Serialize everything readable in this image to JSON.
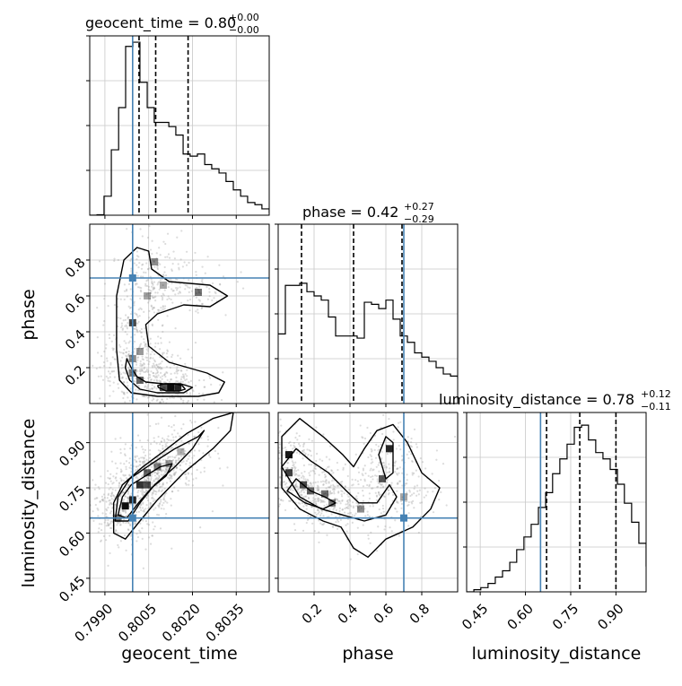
{
  "chart_data": {
    "type": "corner",
    "parameters": [
      "geocent_time",
      "phase",
      "luminosity_distance"
    ],
    "axis_labels": {
      "geocent_time": "geocent_time",
      "phase": "phase",
      "luminosity_distance": "luminosity_distance"
    },
    "ranges": {
      "geocent_time": [
        0.79848,
        0.80463
      ],
      "phase": [
        0.0,
        1.0
      ],
      "luminosity_distance": [
        0.405,
        1.0
      ]
    },
    "ticks": {
      "geocent_time": [
        {
          "value": 0.799,
          "label": "0.7990"
        },
        {
          "value": 0.8005,
          "label": "0.8005"
        },
        {
          "value": 0.802,
          "label": "0.8020"
        },
        {
          "value": 0.8035,
          "label": "0.8035"
        }
      ],
      "phase": [
        {
          "value": 0.2,
          "label": "0.2"
        },
        {
          "value": 0.4,
          "label": "0.4"
        },
        {
          "value": 0.6,
          "label": "0.6"
        },
        {
          "value": 0.8,
          "label": "0.8"
        }
      ],
      "luminosity_distance": [
        {
          "value": 0.45,
          "label": "0.45"
        },
        {
          "value": 0.6,
          "label": "0.60"
        },
        {
          "value": 0.75,
          "label": "0.75"
        },
        {
          "value": 0.9,
          "label": "0.90"
        }
      ]
    },
    "truths": {
      "geocent_time": 0.79995,
      "phase": 0.7,
      "luminosity_distance": 0.65
    },
    "titles": [
      {
        "param": "geocent_time",
        "text": "geocent_time = 0.80",
        "sup": "+0.00",
        "sub": "−0.00"
      },
      {
        "param": "phase",
        "text": "phase = 0.42",
        "sup": "+0.27",
        "sub": "−0.29"
      },
      {
        "param": "luminosity_distance",
        "text": "luminosity_distance = 0.78",
        "sup": "+0.12",
        "sub": "−0.11"
      }
    ],
    "quantiles": {
      "geocent_time": [
        0.80017,
        0.80074,
        0.80185
      ],
      "phase": [
        0.13,
        0.42,
        0.69
      ],
      "luminosity_distance": [
        0.67,
        0.78,
        0.9
      ]
    },
    "histograms": {
      "geocent_time": {
        "edges": [
          0.79848,
          0.79873,
          0.79897,
          0.79922,
          0.79947,
          0.79971,
          0.79996,
          0.8002,
          0.80045,
          0.80069,
          0.80094,
          0.80119,
          0.80143,
          0.80168,
          0.80192,
          0.80217,
          0.80242,
          0.80266,
          0.80291,
          0.80315,
          0.8034,
          0.80365,
          0.80389,
          0.80414,
          0.80438,
          0.80463
        ],
        "counts": [
          0.0,
          0.002,
          0.09,
          0.31,
          0.51,
          0.8,
          0.82,
          0.63,
          0.51,
          0.44,
          0.44,
          0.42,
          0.38,
          0.29,
          0.28,
          0.29,
          0.24,
          0.22,
          0.2,
          0.16,
          0.12,
          0.09,
          0.06,
          0.05,
          0.03,
          0.01
        ]
      },
      "phase": {
        "edges": [
          0.0,
          0.04,
          0.08,
          0.12,
          0.16,
          0.2,
          0.24,
          0.28,
          0.32,
          0.36,
          0.4,
          0.44,
          0.48,
          0.52,
          0.56,
          0.6,
          0.64,
          0.68,
          0.72,
          0.76,
          0.8,
          0.84,
          0.88,
          0.92,
          0.96,
          1.0
        ],
        "counts": [
          0.33,
          0.56,
          0.56,
          0.57,
          0.53,
          0.51,
          0.49,
          0.41,
          0.32,
          0.32,
          0.32,
          0.31,
          0.48,
          0.47,
          0.45,
          0.49,
          0.4,
          0.32,
          0.29,
          0.24,
          0.22,
          0.2,
          0.17,
          0.14,
          0.13,
          0.12
        ]
      },
      "luminosity_distance": {
        "edges": [
          0.405,
          0.429,
          0.452,
          0.476,
          0.5,
          0.524,
          0.548,
          0.571,
          0.595,
          0.619,
          0.643,
          0.667,
          0.69,
          0.714,
          0.738,
          0.762,
          0.786,
          0.809,
          0.833,
          0.857,
          0.881,
          0.905,
          0.928,
          0.952,
          0.976,
          1.0
        ],
        "counts": [
          0.0,
          0.01,
          0.02,
          0.04,
          0.07,
          0.1,
          0.14,
          0.2,
          0.26,
          0.32,
          0.4,
          0.47,
          0.56,
          0.63,
          0.7,
          0.78,
          0.79,
          0.72,
          0.66,
          0.63,
          0.58,
          0.51,
          0.42,
          0.33,
          0.23,
          0.12
        ]
      }
    },
    "contours_2d": {
      "phase_vs_geocent_time": [
        [
          [
            0.80083,
            0.09
          ],
          [
            0.80081,
            0.1
          ],
          [
            0.80105,
            0.11
          ],
          [
            0.8014,
            0.11
          ],
          [
            0.80165,
            0.1
          ],
          [
            0.80175,
            0.08
          ],
          [
            0.80155,
            0.07
          ],
          [
            0.8011,
            0.07
          ],
          [
            0.80083,
            0.09
          ]
        ],
        [
          [
            0.79975,
            0.25
          ],
          [
            0.7999,
            0.2
          ],
          [
            0.8001,
            0.15
          ],
          [
            0.8004,
            0.12
          ],
          [
            0.801,
            0.11
          ],
          [
            0.8016,
            0.11
          ],
          [
            0.802,
            0.09
          ],
          [
            0.8017,
            0.06
          ],
          [
            0.8008,
            0.06
          ],
          [
            0.8002,
            0.08
          ],
          [
            0.79985,
            0.13
          ],
          [
            0.7997,
            0.2
          ],
          [
            0.79975,
            0.25
          ]
        ],
        [
          [
            0.7994,
            0.6
          ],
          [
            0.79965,
            0.8
          ],
          [
            0.8001,
            0.87
          ],
          [
            0.8005,
            0.85
          ],
          [
            0.8006,
            0.75
          ],
          [
            0.8012,
            0.68
          ],
          [
            0.8026,
            0.66
          ],
          [
            0.8032,
            0.6
          ],
          [
            0.8026,
            0.54
          ],
          [
            0.8017,
            0.55
          ],
          [
            0.8008,
            0.5
          ],
          [
            0.8004,
            0.44
          ],
          [
            0.8005,
            0.32
          ],
          [
            0.8012,
            0.23
          ],
          [
            0.8025,
            0.17
          ],
          [
            0.8031,
            0.12
          ],
          [
            0.8029,
            0.06
          ],
          [
            0.8022,
            0.04
          ],
          [
            0.8008,
            0.04
          ],
          [
            0.7999,
            0.06
          ],
          [
            0.7995,
            0.13
          ],
          [
            0.7994,
            0.3
          ],
          [
            0.7994,
            0.6
          ]
        ]
      ],
      "luminosity_distance_vs_geocent_time": [
        [
          [
            0.79945,
            0.66
          ],
          [
            0.7996,
            0.72
          ],
          [
            0.7999,
            0.76
          ],
          [
            0.8004,
            0.79
          ],
          [
            0.8009,
            0.82
          ],
          [
            0.8013,
            0.83
          ],
          [
            0.8011,
            0.79
          ],
          [
            0.8006,
            0.75
          ],
          [
            0.80015,
            0.7
          ],
          [
            0.79975,
            0.65
          ],
          [
            0.79945,
            0.66
          ]
        ],
        [
          [
            0.79935,
            0.64
          ],
          [
            0.79945,
            0.72
          ],
          [
            0.79985,
            0.78
          ],
          [
            0.8006,
            0.83
          ],
          [
            0.8014,
            0.88
          ],
          [
            0.8022,
            0.92
          ],
          [
            0.8024,
            0.94
          ],
          [
            0.802,
            0.88
          ],
          [
            0.8014,
            0.82
          ],
          [
            0.8007,
            0.76
          ],
          [
            0.8002,
            0.7
          ],
          [
            0.7998,
            0.64
          ],
          [
            0.79935,
            0.64
          ]
        ],
        [
          [
            0.7993,
            0.6
          ],
          [
            0.7993,
            0.7
          ],
          [
            0.7996,
            0.76
          ],
          [
            0.8003,
            0.82
          ],
          [
            0.801,
            0.87
          ],
          [
            0.8018,
            0.93
          ],
          [
            0.8027,
            0.98
          ],
          [
            0.8034,
            1.0
          ],
          [
            0.8033,
            0.94
          ],
          [
            0.8027,
            0.88
          ],
          [
            0.8017,
            0.8
          ],
          [
            0.8008,
            0.71
          ],
          [
            0.8002,
            0.64
          ],
          [
            0.7997,
            0.58
          ],
          [
            0.7993,
            0.6
          ]
        ]
      ],
      "luminosity_distance_vs_phase": [
        [
          [
            0.05,
            0.74
          ],
          [
            0.1,
            0.78
          ],
          [
            0.18,
            0.74
          ],
          [
            0.26,
            0.72
          ],
          [
            0.32,
            0.7
          ],
          [
            0.25,
            0.68
          ],
          [
            0.15,
            0.7
          ],
          [
            0.05,
            0.74
          ]
        ],
        [
          [
            0.56,
            0.86
          ],
          [
            0.6,
            0.92
          ],
          [
            0.64,
            0.9
          ],
          [
            0.64,
            0.8
          ],
          [
            0.6,
            0.78
          ],
          [
            0.56,
            0.86
          ]
        ],
        [
          [
            0.02,
            0.82
          ],
          [
            0.1,
            0.88
          ],
          [
            0.18,
            0.84
          ],
          [
            0.28,
            0.8
          ],
          [
            0.38,
            0.74
          ],
          [
            0.45,
            0.7
          ],
          [
            0.55,
            0.7
          ],
          [
            0.62,
            0.76
          ],
          [
            0.66,
            0.72
          ],
          [
            0.6,
            0.66
          ],
          [
            0.48,
            0.64
          ],
          [
            0.36,
            0.66
          ],
          [
            0.24,
            0.68
          ],
          [
            0.12,
            0.72
          ],
          [
            0.02,
            0.82
          ]
        ],
        [
          [
            0.02,
            0.92
          ],
          [
            0.12,
            0.98
          ],
          [
            0.25,
            0.92
          ],
          [
            0.36,
            0.86
          ],
          [
            0.42,
            0.82
          ],
          [
            0.48,
            0.88
          ],
          [
            0.55,
            0.94
          ],
          [
            0.64,
            0.96
          ],
          [
            0.72,
            0.9
          ],
          [
            0.8,
            0.8
          ],
          [
            0.9,
            0.75
          ],
          [
            0.85,
            0.68
          ],
          [
            0.75,
            0.62
          ],
          [
            0.6,
            0.58
          ],
          [
            0.5,
            0.52
          ],
          [
            0.42,
            0.55
          ],
          [
            0.35,
            0.62
          ],
          [
            0.25,
            0.64
          ],
          [
            0.12,
            0.68
          ],
          [
            0.02,
            0.75
          ],
          [
            0.02,
            0.92
          ]
        ]
      ]
    },
    "density_2d": {
      "phase_vs_geocent_time": [
        {
          "x": 0.80125,
          "y": 0.09,
          "w": 0.95
        },
        {
          "x": 0.8015,
          "y": 0.09,
          "w": 0.85
        },
        {
          "x": 0.801,
          "y": 0.09,
          "w": 0.7
        },
        {
          "x": 0.8002,
          "y": 0.13,
          "w": 0.6
        },
        {
          "x": 0.79995,
          "y": 0.17,
          "w": 0.5
        },
        {
          "x": 0.79995,
          "y": 0.25,
          "w": 0.45
        },
        {
          "x": 0.8002,
          "y": 0.29,
          "w": 0.4
        },
        {
          "x": 0.79995,
          "y": 0.45,
          "w": 0.7
        },
        {
          "x": 0.80045,
          "y": 0.6,
          "w": 0.35
        },
        {
          "x": 0.8022,
          "y": 0.62,
          "w": 0.55
        },
        {
          "x": 0.8007,
          "y": 0.79,
          "w": 0.45
        },
        {
          "x": 0.801,
          "y": 0.66,
          "w": 0.35
        }
      ],
      "luminosity_distance_vs_geocent_time": [
        {
          "x": 0.7997,
          "y": 0.69,
          "w": 0.95
        },
        {
          "x": 0.79995,
          "y": 0.71,
          "w": 0.85
        },
        {
          "x": 0.8002,
          "y": 0.76,
          "w": 0.8
        },
        {
          "x": 0.80045,
          "y": 0.76,
          "w": 0.7
        },
        {
          "x": 0.80045,
          "y": 0.8,
          "w": 0.6
        },
        {
          "x": 0.8008,
          "y": 0.82,
          "w": 0.5
        },
        {
          "x": 0.8012,
          "y": 0.83,
          "w": 0.4
        },
        {
          "x": 0.8016,
          "y": 0.87,
          "w": 0.3
        },
        {
          "x": 0.79945,
          "y": 0.65,
          "w": 0.5
        }
      ],
      "luminosity_distance_vs_phase": [
        {
          "x": 0.06,
          "y": 0.86,
          "w": 0.9
        },
        {
          "x": 0.06,
          "y": 0.8,
          "w": 0.75
        },
        {
          "x": 0.14,
          "y": 0.76,
          "w": 0.7
        },
        {
          "x": 0.18,
          "y": 0.74,
          "w": 0.6
        },
        {
          "x": 0.26,
          "y": 0.73,
          "w": 0.55
        },
        {
          "x": 0.3,
          "y": 0.7,
          "w": 0.5
        },
        {
          "x": 0.62,
          "y": 0.88,
          "w": 0.85
        },
        {
          "x": 0.58,
          "y": 0.78,
          "w": 0.65
        },
        {
          "x": 0.46,
          "y": 0.68,
          "w": 0.45
        },
        {
          "x": 0.7,
          "y": 0.72,
          "w": 0.35
        }
      ]
    },
    "colors": {
      "truth": "#4682b4",
      "hist": "#000000",
      "quantile": "#000000",
      "contour": "#000000",
      "grid": "#c8c8c8",
      "scatter": "#9a9a9a",
      "density": "#000000"
    },
    "grid": true
  }
}
